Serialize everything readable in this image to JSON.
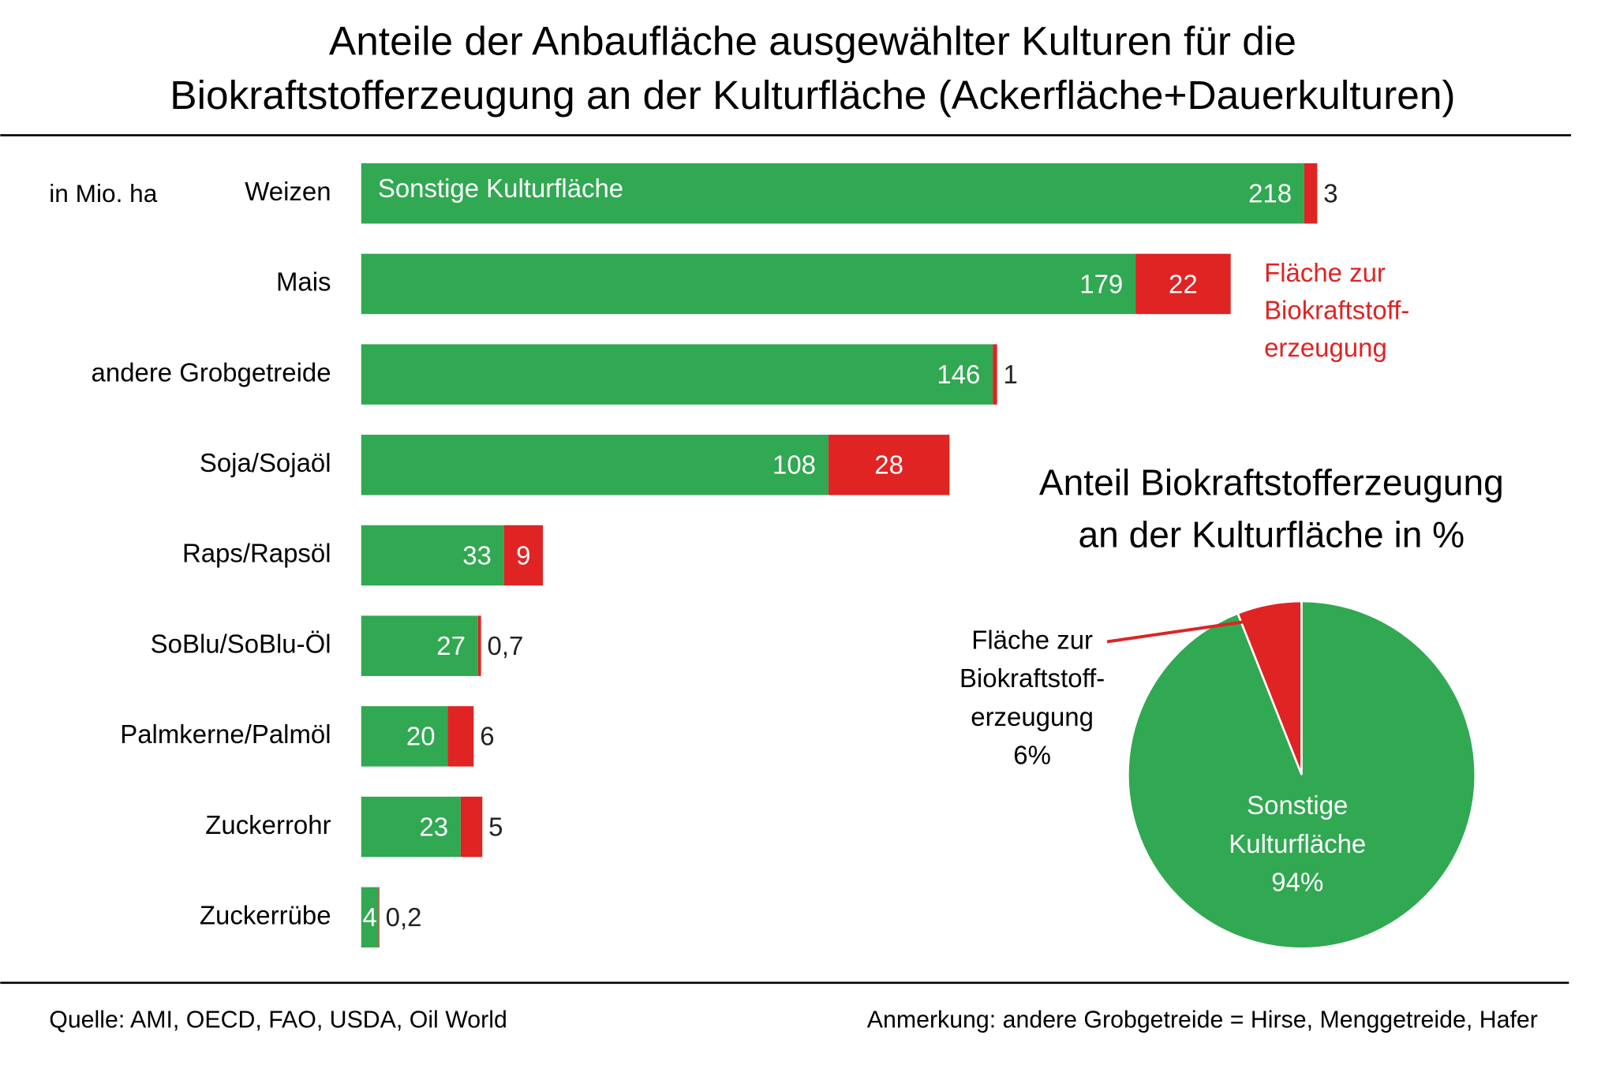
{
  "chart_data": [
    {
      "type": "stacked-bar",
      "title": "Anteile der Anbaufläche ausgewählter Kulturen für die\nBiokraftstofferzeugung an der Kulturfläche (Ackerfläche+Dauerkulturen)",
      "unit_label": "in Mio. ha",
      "categories": [
        "Weizen",
        "Mais",
        "andere Grobgetreide",
        "Soja/Sojaöl",
        "Raps/Rapsöl",
        "SoBlu/SoBlu-Öl",
        "Palmkerne/Palmöl",
        "Zuckerrohr",
        "Zuckerrübe"
      ],
      "series": [
        {
          "name": "Sonstige Kulturfläche",
          "color": "#31a852",
          "values": [
            218,
            179,
            146,
            108,
            33,
            27,
            20,
            23,
            4
          ]
        },
        {
          "name": "Fläche zur\nBiokraftstoff-\nerzeugung",
          "color": "#e02323",
          "values": [
            3,
            22,
            1,
            28,
            9,
            0.7,
            6,
            5,
            0.2
          ],
          "value_labels": [
            "3",
            "22",
            "1",
            "28",
            "9",
            "0,7",
            "6",
            "5",
            "0,2"
          ]
        }
      ],
      "source": "Quelle:  AMI, OECD, FAO, USDA, Oil World",
      "note": "Anmerkung:  andere Grobgetreide = Hirse, Menggetreide, Hafer"
    },
    {
      "type": "pie",
      "title": "Anteil Biokraftstofferzeugung\nan der Kulturfläche in %",
      "categories": [
        "Fläche zur\nBiokraftstoff-\nerzeugung",
        "Sonstige\nKulturfläche"
      ],
      "values": [
        6,
        94
      ],
      "value_labels": [
        "6%",
        "94%"
      ],
      "colors": [
        "#e02323",
        "#31a852"
      ]
    }
  ]
}
